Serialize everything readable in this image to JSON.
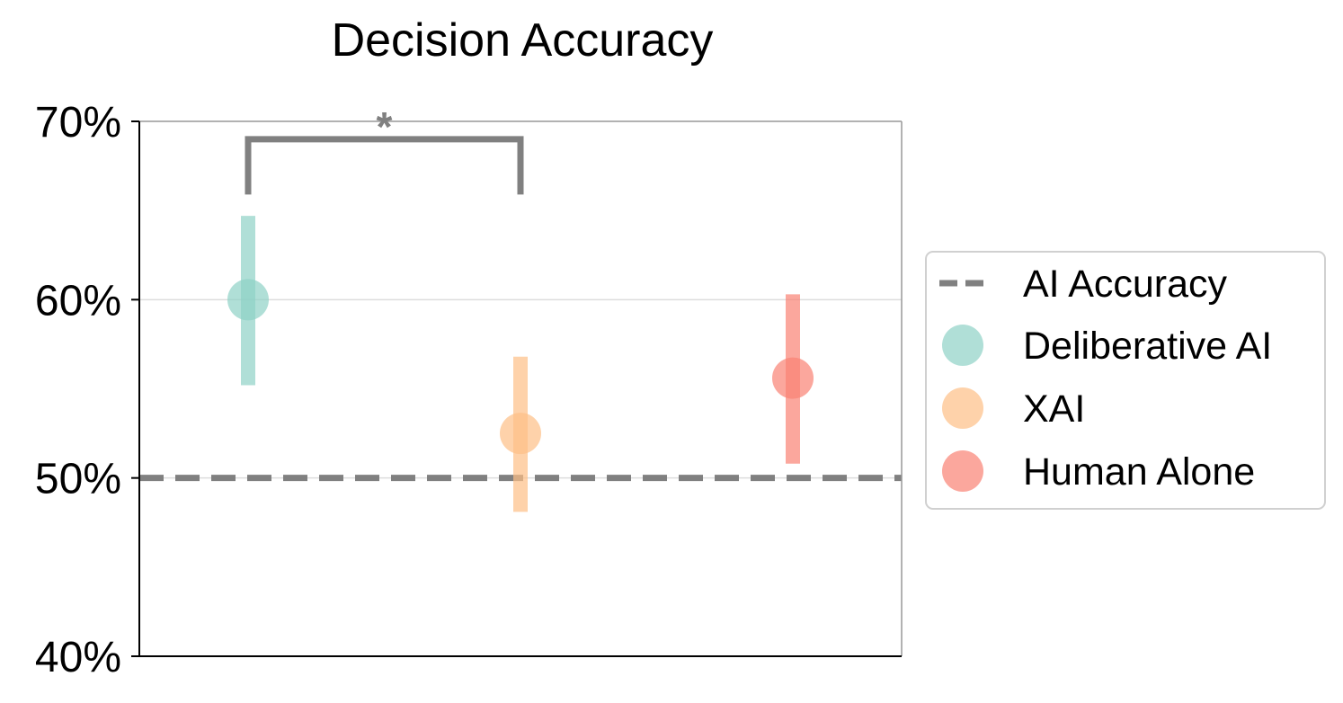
{
  "chart_data": {
    "type": "scatter",
    "title": "Decision Accuracy",
    "xlabel": "",
    "ylabel": "",
    "ylim": [
      40,
      70
    ],
    "y_ticks": [
      {
        "value": 70,
        "label": "70%"
      },
      {
        "value": 60,
        "label": "60%"
      },
      {
        "value": 50,
        "label": "50%"
      },
      {
        "value": 40,
        "label": "40%"
      }
    ],
    "grid": "horizontal",
    "series": [
      {
        "name": "Deliberative AI",
        "mean": 60.0,
        "ci_low": 55.2,
        "ci_high": 64.7,
        "color": "#8ed1c6"
      },
      {
        "name": "XAI",
        "mean": 52.5,
        "ci_low": 48.1,
        "ci_high": 56.8,
        "color": "#fdbf86"
      },
      {
        "name": "Human Alone",
        "mean": 55.6,
        "ci_low": 50.8,
        "ci_high": 60.3,
        "color": "#f98173"
      }
    ],
    "reference_line": {
      "name": "AI Accuracy",
      "value": 50,
      "color": "#808080",
      "style": "dashed"
    },
    "significance": {
      "label": "*",
      "between": [
        "Deliberative AI",
        "XAI"
      ],
      "bracket_top": 69,
      "bracket_bottom": 65.9
    },
    "legend": {
      "placement": "right",
      "entries": [
        "AI Accuracy",
        "Deliberative AI",
        "XAI",
        "Human Alone"
      ]
    }
  }
}
